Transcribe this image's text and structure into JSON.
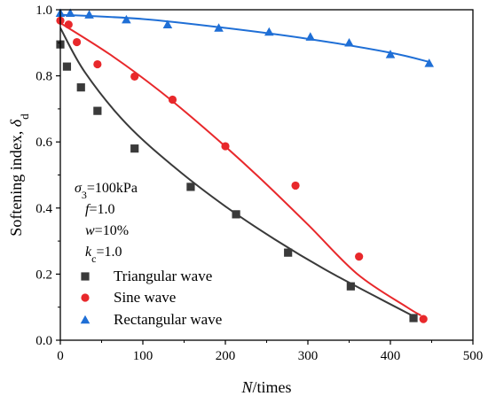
{
  "chart_data": {
    "type": "scatter",
    "xlabel": {
      "main": "N",
      "rest": "/times"
    },
    "ylabel": {
      "main": "Softening index, ",
      "sym": "δ",
      "sub": "d"
    },
    "xlim": [
      0,
      500
    ],
    "ylim": [
      0.0,
      1.0
    ],
    "x_ticks": [
      0,
      100,
      200,
      300,
      400,
      500
    ],
    "x_tick_labels": [
      "0",
      "100",
      "200",
      "300",
      "400",
      "500"
    ],
    "y_ticks": [
      0.0,
      0.2,
      0.4,
      0.6,
      0.8,
      1.0
    ],
    "y_tick_labels": [
      "0.0",
      "0.2",
      "0.4",
      "0.6",
      "0.8",
      "1.0"
    ],
    "grid": false,
    "legend_position": "bottom-left",
    "annotations": [
      {
        "sym": "σ",
        "sub": "3",
        "rest": "=100kPa"
      },
      {
        "sym": "f",
        "sub": "",
        "rest": "=1.0"
      },
      {
        "sym": "w",
        "sub": "",
        "rest": "=10%"
      },
      {
        "sym": "k",
        "sub": "c",
        "rest": "=1.0"
      }
    ],
    "series": [
      {
        "name": "Triangular wave",
        "marker": "square",
        "color": "#3a3a3a",
        "points": [
          [
            0,
            0.895
          ],
          [
            8,
            0.828
          ],
          [
            25,
            0.765
          ],
          [
            45,
            0.694
          ],
          [
            90,
            0.58
          ],
          [
            158,
            0.464
          ],
          [
            213,
            0.381
          ],
          [
            276,
            0.265
          ],
          [
            352,
            0.163
          ],
          [
            428,
            0.067
          ]
        ],
        "fit": [
          [
            0,
            0.945
          ],
          [
            30,
            0.81
          ],
          [
            80,
            0.655
          ],
          [
            140,
            0.52
          ],
          [
            200,
            0.405
          ],
          [
            260,
            0.305
          ],
          [
            320,
            0.215
          ],
          [
            380,
            0.135
          ],
          [
            430,
            0.07
          ]
        ]
      },
      {
        "name": "Sine wave",
        "marker": "circle",
        "color": "#e8282b",
        "points": [
          [
            0,
            0.967
          ],
          [
            10,
            0.955
          ],
          [
            20,
            0.902
          ],
          [
            45,
            0.835
          ],
          [
            90,
            0.798
          ],
          [
            136,
            0.728
          ],
          [
            200,
            0.587
          ],
          [
            285,
            0.468
          ],
          [
            362,
            0.253
          ],
          [
            440,
            0.064
          ]
        ],
        "fit": [
          [
            0,
            0.96
          ],
          [
            60,
            0.865
          ],
          [
            120,
            0.755
          ],
          [
            180,
            0.63
          ],
          [
            240,
            0.495
          ],
          [
            300,
            0.35
          ],
          [
            360,
            0.2
          ],
          [
            420,
            0.1
          ],
          [
            437,
            0.075
          ]
        ]
      },
      {
        "name": "Rectangular wave",
        "marker": "triangle",
        "color": "#1f6fd6",
        "points": [
          [
            0,
            0.99
          ],
          [
            12,
            0.99
          ],
          [
            35,
            0.985
          ],
          [
            80,
            0.97
          ],
          [
            130,
            0.955
          ],
          [
            192,
            0.945
          ],
          [
            253,
            0.933
          ],
          [
            303,
            0.918
          ],
          [
            350,
            0.9
          ],
          [
            400,
            0.865
          ],
          [
            447,
            0.838
          ]
        ],
        "fit": [
          [
            0,
            0.985
          ],
          [
            100,
            0.972
          ],
          [
            200,
            0.945
          ],
          [
            300,
            0.912
          ],
          [
            400,
            0.87
          ],
          [
            447,
            0.842
          ]
        ]
      }
    ]
  }
}
